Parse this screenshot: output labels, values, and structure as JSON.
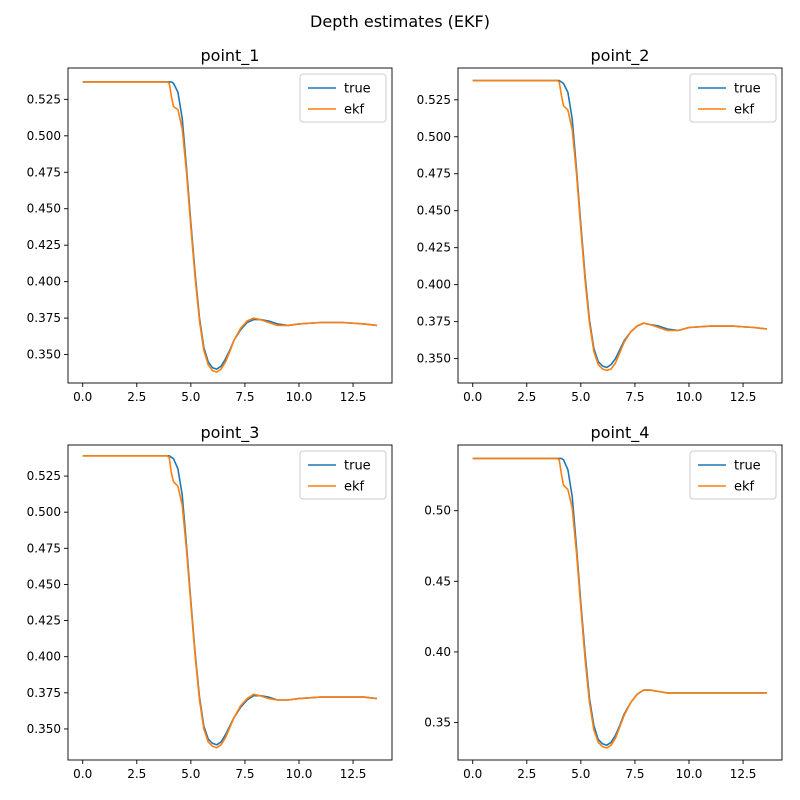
{
  "figure": {
    "suptitle": "Depth estimates (EKF)"
  },
  "colors": {
    "true": "#1f77b4",
    "ekf": "#ff7f0e",
    "axis": "#000000"
  },
  "chart_data": [
    {
      "type": "line",
      "title": "point_1",
      "xlabel": "",
      "ylabel": "",
      "xlim": [
        -0.68,
        14.3
      ],
      "ylim": [
        0.3305,
        0.5465
      ],
      "xticks": [
        0.0,
        2.5,
        5.0,
        7.5,
        10.0,
        12.5
      ],
      "yticks": [
        0.35,
        0.375,
        0.4,
        0.425,
        0.45,
        0.475,
        0.5,
        0.525
      ],
      "legend": {
        "placement": "top-right",
        "entries": [
          "true",
          "ekf"
        ]
      },
      "series": [
        {
          "name": "true",
          "x": [
            0,
            4.0,
            4.1,
            4.2,
            4.4,
            4.6,
            4.8,
            5.0,
            5.2,
            5.4,
            5.6,
            5.8,
            6.0,
            6.2,
            6.4,
            6.6,
            6.8,
            7.0,
            7.3,
            7.6,
            7.9,
            8.2,
            8.6,
            9.0,
            9.5,
            10.0,
            11.0,
            12.0,
            13.0,
            13.6
          ],
          "y": [
            0.537,
            0.537,
            0.537,
            0.536,
            0.53,
            0.512,
            0.478,
            0.44,
            0.405,
            0.375,
            0.355,
            0.345,
            0.341,
            0.34,
            0.342,
            0.347,
            0.353,
            0.36,
            0.367,
            0.372,
            0.374,
            0.374,
            0.373,
            0.371,
            0.37,
            0.371,
            0.372,
            0.372,
            0.371,
            0.37
          ]
        },
        {
          "name": "ekf",
          "x": [
            0,
            3.9,
            4.0,
            4.1,
            4.2,
            4.4,
            4.6,
            4.8,
            5.0,
            5.2,
            5.4,
            5.6,
            5.8,
            6.0,
            6.2,
            6.4,
            6.6,
            6.8,
            7.0,
            7.3,
            7.6,
            7.9,
            8.2,
            8.6,
            9.0,
            9.5,
            10.0,
            11.0,
            12.0,
            13.0,
            13.6
          ],
          "y": [
            0.537,
            0.537,
            0.536,
            0.527,
            0.52,
            0.518,
            0.505,
            0.475,
            0.437,
            0.402,
            0.373,
            0.353,
            0.343,
            0.339,
            0.338,
            0.34,
            0.345,
            0.352,
            0.36,
            0.368,
            0.373,
            0.375,
            0.374,
            0.372,
            0.37,
            0.37,
            0.371,
            0.372,
            0.372,
            0.371,
            0.37
          ]
        }
      ]
    },
    {
      "type": "line",
      "title": "point_2",
      "xlabel": "",
      "ylabel": "",
      "xlim": [
        -0.68,
        14.3
      ],
      "ylim": [
        0.3335,
        0.5465
      ],
      "xticks": [
        0.0,
        2.5,
        5.0,
        7.5,
        10.0,
        12.5
      ],
      "yticks": [
        0.35,
        0.375,
        0.4,
        0.425,
        0.45,
        0.475,
        0.5,
        0.525
      ],
      "legend": {
        "placement": "top-right",
        "entries": [
          "true",
          "ekf"
        ]
      },
      "series": [
        {
          "name": "true",
          "x": [
            0,
            4.0,
            4.1,
            4.2,
            4.4,
            4.6,
            4.8,
            5.0,
            5.2,
            5.4,
            5.6,
            5.8,
            6.0,
            6.2,
            6.4,
            6.6,
            6.8,
            7.0,
            7.3,
            7.6,
            7.9,
            8.2,
            8.6,
            9.0,
            9.5,
            10.0,
            11.0,
            12.0,
            13.0,
            13.6
          ],
          "y": [
            0.538,
            0.538,
            0.537,
            0.536,
            0.53,
            0.512,
            0.478,
            0.44,
            0.405,
            0.376,
            0.357,
            0.348,
            0.345,
            0.344,
            0.346,
            0.35,
            0.356,
            0.362,
            0.368,
            0.372,
            0.374,
            0.373,
            0.372,
            0.37,
            0.369,
            0.371,
            0.372,
            0.372,
            0.371,
            0.37
          ]
        },
        {
          "name": "ekf",
          "x": [
            0,
            3.9,
            4.0,
            4.1,
            4.2,
            4.4,
            4.6,
            4.8,
            5.0,
            5.2,
            5.4,
            5.6,
            5.8,
            6.0,
            6.2,
            6.4,
            6.6,
            6.8,
            7.0,
            7.3,
            7.6,
            7.9,
            8.2,
            8.6,
            9.0,
            9.5,
            10.0,
            11.0,
            12.0,
            13.0,
            13.6
          ],
          "y": [
            0.538,
            0.538,
            0.537,
            0.528,
            0.521,
            0.518,
            0.505,
            0.475,
            0.437,
            0.402,
            0.374,
            0.355,
            0.346,
            0.343,
            0.342,
            0.343,
            0.347,
            0.354,
            0.361,
            0.368,
            0.372,
            0.374,
            0.373,
            0.371,
            0.369,
            0.369,
            0.371,
            0.372,
            0.372,
            0.371,
            0.37
          ]
        }
      ]
    },
    {
      "type": "line",
      "title": "point_3",
      "xlabel": "",
      "ylabel": "",
      "xlim": [
        -0.68,
        14.3
      ],
      "ylim": [
        0.3285,
        0.5465
      ],
      "xticks": [
        0.0,
        2.5,
        5.0,
        7.5,
        10.0,
        12.5
      ],
      "yticks": [
        0.35,
        0.375,
        0.4,
        0.425,
        0.45,
        0.475,
        0.5,
        0.525
      ],
      "legend": {
        "placement": "top-right",
        "entries": [
          "true",
          "ekf"
        ]
      },
      "series": [
        {
          "name": "true",
          "x": [
            0,
            4.0,
            4.1,
            4.2,
            4.4,
            4.6,
            4.8,
            5.0,
            5.2,
            5.4,
            5.6,
            5.8,
            6.0,
            6.2,
            6.4,
            6.6,
            6.8,
            7.0,
            7.3,
            7.6,
            7.9,
            8.2,
            8.6,
            9.0,
            9.5,
            10.0,
            11.0,
            12.0,
            13.0,
            13.6
          ],
          "y": [
            0.539,
            0.539,
            0.538,
            0.537,
            0.53,
            0.512,
            0.477,
            0.438,
            0.402,
            0.372,
            0.352,
            0.343,
            0.34,
            0.339,
            0.341,
            0.346,
            0.352,
            0.358,
            0.365,
            0.37,
            0.373,
            0.373,
            0.372,
            0.37,
            0.37,
            0.371,
            0.372,
            0.372,
            0.372,
            0.371
          ]
        },
        {
          "name": "ekf",
          "x": [
            0,
            3.9,
            4.0,
            4.1,
            4.2,
            4.4,
            4.6,
            4.8,
            5.0,
            5.2,
            5.4,
            5.6,
            5.8,
            6.0,
            6.2,
            6.4,
            6.6,
            6.8,
            7.0,
            7.3,
            7.6,
            7.9,
            8.2,
            8.6,
            9.0,
            9.5,
            10.0,
            11.0,
            12.0,
            13.0,
            13.6
          ],
          "y": [
            0.539,
            0.539,
            0.538,
            0.527,
            0.521,
            0.518,
            0.505,
            0.474,
            0.436,
            0.4,
            0.37,
            0.35,
            0.341,
            0.338,
            0.337,
            0.339,
            0.344,
            0.351,
            0.358,
            0.366,
            0.371,
            0.374,
            0.373,
            0.371,
            0.37,
            0.37,
            0.371,
            0.372,
            0.372,
            0.372,
            0.371
          ]
        }
      ]
    },
    {
      "type": "line",
      "title": "point_4",
      "xlabel": "",
      "ylabel": "",
      "xlim": [
        -0.68,
        14.3
      ],
      "ylim": [
        0.3235,
        0.5465
      ],
      "xticks": [
        0.0,
        2.5,
        5.0,
        7.5,
        10.0,
        12.5
      ],
      "yticks": [
        0.35,
        0.4,
        0.45,
        0.5
      ],
      "legend": {
        "placement": "top-right",
        "entries": [
          "true",
          "ekf"
        ]
      },
      "series": [
        {
          "name": "true",
          "x": [
            0,
            4.0,
            4.1,
            4.2,
            4.4,
            4.6,
            4.8,
            5.0,
            5.2,
            5.4,
            5.6,
            5.8,
            6.0,
            6.2,
            6.4,
            6.6,
            6.8,
            7.0,
            7.3,
            7.6,
            7.9,
            8.2,
            8.6,
            9.0,
            9.5,
            10.0,
            11.0,
            12.0,
            13.0,
            13.6
          ],
          "y": [
            0.537,
            0.537,
            0.537,
            0.536,
            0.529,
            0.51,
            0.474,
            0.434,
            0.398,
            0.367,
            0.348,
            0.338,
            0.335,
            0.334,
            0.336,
            0.341,
            0.348,
            0.356,
            0.364,
            0.37,
            0.373,
            0.373,
            0.372,
            0.371,
            0.371,
            0.371,
            0.371,
            0.371,
            0.371,
            0.371
          ]
        },
        {
          "name": "ekf",
          "x": [
            0,
            3.9,
            4.0,
            4.1,
            4.2,
            4.4,
            4.6,
            4.8,
            5.0,
            5.2,
            5.4,
            5.6,
            5.8,
            6.0,
            6.2,
            6.4,
            6.6,
            6.8,
            7.0,
            7.3,
            7.6,
            7.9,
            8.2,
            8.6,
            9.0,
            9.5,
            10.0,
            11.0,
            12.0,
            13.0,
            13.6
          ],
          "y": [
            0.537,
            0.537,
            0.536,
            0.526,
            0.518,
            0.515,
            0.502,
            0.47,
            0.431,
            0.394,
            0.364,
            0.345,
            0.336,
            0.333,
            0.332,
            0.334,
            0.339,
            0.347,
            0.355,
            0.364,
            0.37,
            0.373,
            0.373,
            0.372,
            0.371,
            0.371,
            0.371,
            0.371,
            0.371,
            0.371,
            0.371
          ]
        }
      ]
    }
  ]
}
